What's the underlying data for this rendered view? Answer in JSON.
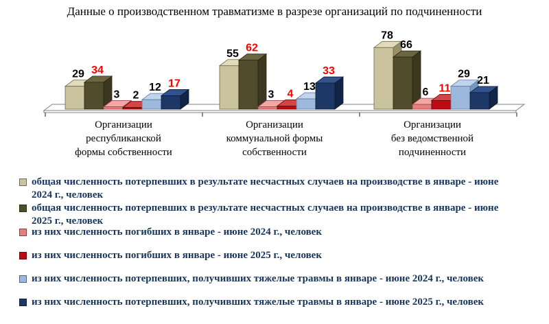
{
  "chart_data": {
    "type": "bar",
    "style": "3d-clustered",
    "title": "Данные о производственном травматизме в разрезе организаций по подчиненности",
    "grid": false,
    "ylim": [
      0,
      90
    ],
    "legend_position": "bottom-left",
    "legend_text_color": "#17365D",
    "value_label_highlight": "#FF0000",
    "categories": [
      "Организации республиканской формы собственности",
      "Организации коммунальной формы собственности",
      "Организации без ведомственной подчиненности"
    ],
    "category_lines": [
      [
        "Организации",
        "республиканской",
        "формы собственности"
      ],
      [
        "Организации",
        "коммунальной формы",
        "собственности"
      ],
      [
        "Организации",
        "без ведомственной",
        "подчиненности"
      ]
    ],
    "series": [
      {
        "name": "общая численность потерпевших в результате несчастных случаев на производстве в январе - июне 2024 г., человек",
        "legend_lines": [
          "общая численность потерпевших в результате несчастных случаев на производстве в январе - июне",
          "2024 г., человек"
        ],
        "values": [
          29,
          55,
          78
        ],
        "colors": {
          "front": "#CBC39D",
          "top": "#E2DBBB",
          "side": "#97906A",
          "stroke": "#6F6947"
        },
        "label_colors": [
          "#000000",
          "#000000",
          "#000000"
        ]
      },
      {
        "name": "общая численность потерпевших в результате несчастных случаев на производстве в январе - июне 2025 г., человек",
        "legend_lines": [
          "общая численность потерпевших в результате несчастных случаев на производстве в январе - июне",
          "2025 г., человек"
        ],
        "values": [
          34,
          62,
          66
        ],
        "colors": {
          "front": "#514C2C",
          "top": "#6B6540",
          "side": "#3B3720",
          "stroke": "#26230F"
        },
        "label_colors": [
          "#FF0000",
          "#FF0000",
          "#000000"
        ]
      },
      {
        "name": "из них численность погибших в январе - июне 2024 г., человек",
        "legend_lines": [
          "из них численность погибших в январе - июне 2024 г., человек"
        ],
        "values": [
          3,
          3,
          6
        ],
        "colors": {
          "front": "#E67E7E",
          "top": "#F3A6A6",
          "side": "#BF5A5A",
          "stroke": "#9E4444"
        },
        "label_colors": [
          "#000000",
          "#000000",
          "#000000"
        ]
      },
      {
        "name": "из них численность погибших в январе - июне 2025 г., человек",
        "legend_lines": [
          "из них численность погибших в январе - июне 2025 г., человек"
        ],
        "values": [
          2,
          4,
          11
        ],
        "colors": {
          "front": "#BE0B13",
          "top": "#D64545",
          "side": "#8B070D",
          "stroke": "#5F0408"
        },
        "label_colors": [
          "#000000",
          "#FF0000",
          "#FF0000"
        ]
      },
      {
        "name": "из них численность потерпевших, получивших тяжелые травмы в январе - июне 2024 г., человек",
        "legend_lines": [
          "из них численность потерпевших, получивших тяжелые травмы в январе - июне 2024 г., человек"
        ],
        "values": [
          12,
          13,
          29
        ],
        "colors": {
          "front": "#9CB8DC",
          "top": "#C1D4EB",
          "side": "#7896BF",
          "stroke": "#5C7CA4"
        },
        "label_colors": [
          "#000000",
          "#000000",
          "#000000"
        ]
      },
      {
        "name": "из них численность потерпевших, получивших тяжелые травмы в январе - июне 2025 г., человек",
        "legend_lines": [
          "из них численность потерпевших, получивших тяжелые травмы в январе - июне 2025 г., человек"
        ],
        "values": [
          17,
          33,
          21
        ],
        "colors": {
          "front": "#1D3867",
          "top": "#32528C",
          "side": "#122546",
          "stroke": "#0C1A33"
        },
        "label_colors": [
          "#FF0000",
          "#FF0000",
          "#000000"
        ]
      }
    ]
  }
}
